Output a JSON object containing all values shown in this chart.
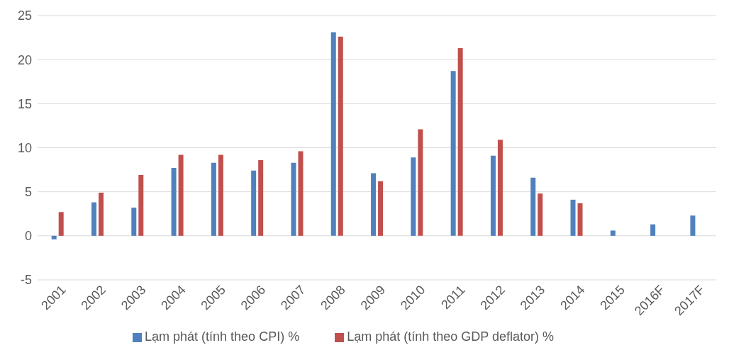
{
  "chart_data": {
    "type": "bar",
    "categories": [
      "2001",
      "2002",
      "2003",
      "2004",
      "2005",
      "2006",
      "2007",
      "2008",
      "2009",
      "2010",
      "2011",
      "2012",
      "2013",
      "2014",
      "2015",
      "2016F",
      "2017F"
    ],
    "series": [
      {
        "name": "Lạm phát (tính theo CPI) %",
        "color": "#4f81bd",
        "values": [
          -0.4,
          3.8,
          3.2,
          7.7,
          8.3,
          7.4,
          8.3,
          23.1,
          7.1,
          8.9,
          18.7,
          9.1,
          6.6,
          4.1,
          0.6,
          1.3,
          2.3
        ]
      },
      {
        "name": "Lạm phát (tính theo GDP deflator) %",
        "color": "#c0504d",
        "values": [
          2.7,
          4.9,
          6.9,
          9.2,
          9.2,
          8.6,
          9.6,
          22.6,
          6.2,
          12.1,
          21.3,
          10.9,
          4.8,
          3.7,
          null,
          null,
          null
        ]
      }
    ],
    "ylim": [
      -5,
      25
    ],
    "yticks": [
      -5,
      0,
      5,
      10,
      15,
      20,
      25
    ],
    "grid": "y",
    "legend": "bottom"
  }
}
